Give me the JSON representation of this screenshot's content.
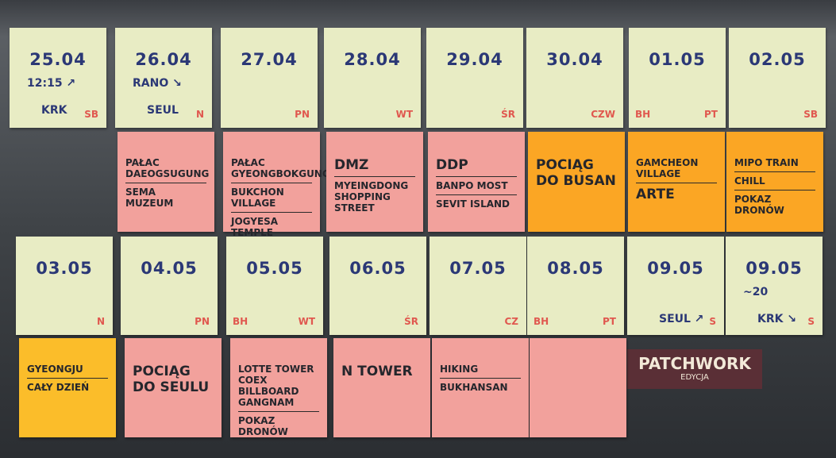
{
  "rows": [
    {
      "notes": [
        {
          "color": "#e8ecc4",
          "date": "25.04",
          "time": "12:15 ↗",
          "place": "KRK",
          "day": "SB"
        },
        {
          "color": "#e8ecc4",
          "date": "26.04",
          "time": "RANO ↘",
          "place": "SEUL",
          "day": "N"
        },
        {
          "color": "#e8ecc4",
          "date": "27.04",
          "day": "PN"
        },
        {
          "color": "#e8ecc4",
          "date": "28.04",
          "day": "WT"
        },
        {
          "color": "#e8ecc4",
          "date": "29.04",
          "day": "ŚR"
        },
        {
          "color": "#e8ecc4",
          "date": "30.04",
          "day": "CZW"
        },
        {
          "color": "#e8ecc4",
          "date": "01.05",
          "mark": "BH",
          "day": "PT"
        },
        {
          "color": "#e8ecc4",
          "date": "02.05",
          "day": "SB"
        }
      ]
    },
    {
      "notes": [
        {
          "color": "#f2a19c",
          "items": [
            "PAŁAC DAEOGSUGUNG",
            "SEMA MUZEUM"
          ]
        },
        {
          "color": "#f2a19c",
          "items": [
            "PAŁAC GYEONGBOKGUNG",
            "BUKCHON VILLAGE",
            "JOGYESA TEMPLE"
          ]
        },
        {
          "color": "#f2a19c",
          "items": [
            "DMZ",
            "MYEINGDONG SHOPPING STREET"
          ]
        },
        {
          "color": "#f2a19c",
          "items": [
            "DDP",
            "BANPO MOST",
            "SEVIT ISLAND"
          ]
        },
        {
          "color": "#fba624",
          "items": [
            "POCIĄG DO BUSAN"
          ]
        },
        {
          "color": "#fba624",
          "items": [
            "GAMCHEON VILLAGE",
            "ARTE"
          ]
        },
        {
          "color": "#fba624",
          "items": [
            "MIPO TRAIN",
            "CHILL",
            "POKAZ DRONÓW"
          ]
        }
      ]
    },
    {
      "notes": [
        {
          "color": "#e8ecc4",
          "date": "03.05",
          "day": "N"
        },
        {
          "color": "#e8ecc4",
          "date": "04.05",
          "day": "PN"
        },
        {
          "color": "#e8ecc4",
          "date": "05.05",
          "mark": "BH",
          "day": "WT"
        },
        {
          "color": "#e8ecc4",
          "date": "06.05",
          "day": "ŚR"
        },
        {
          "color": "#e8ecc4",
          "date": "07.05",
          "day": "CZ"
        },
        {
          "color": "#e8ecc4",
          "date": "08.05",
          "mark": "BH",
          "day": "PT"
        },
        {
          "color": "#e8ecc4",
          "date": "09.05",
          "place": "SEUL ↗",
          "day": "S"
        },
        {
          "color": "#e8ecc4",
          "date": "09.05",
          "place": "KRK ↘",
          "time": "~20",
          "day": "S"
        }
      ]
    },
    {
      "notes": [
        {
          "color": "#fbbd2a",
          "items": [
            "GYEONGJU",
            "CAŁY DZIEŃ"
          ]
        },
        {
          "color": "#f2a19c",
          "items": [
            "POCIĄG DO SEULU"
          ]
        },
        {
          "color": "#f2a19c",
          "items": [
            "LOTTE TOWER COEX BILLBOARD GANGNAM",
            "POKAZ DRONÓW"
          ]
        },
        {
          "color": "#f2a19c",
          "items": [
            "N TOWER"
          ]
        },
        {
          "color": "#f2a19c",
          "items": [
            "HIKING",
            "BUKHANSAN"
          ]
        },
        {
          "color": "#f2a19c"
        }
      ]
    }
  ],
  "board": {
    "game_title": "PATCHWORK",
    "game_edition": "EDYCJA"
  }
}
